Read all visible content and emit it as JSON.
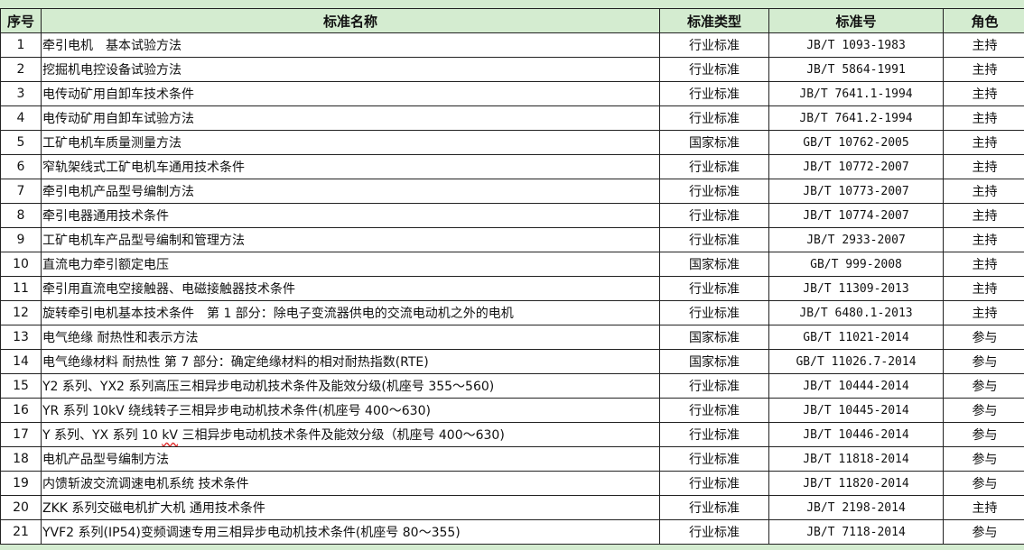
{
  "headers": {
    "seq": "序号",
    "name": "标准名称",
    "type": "标准类型",
    "number": "标准号",
    "role": "角色"
  },
  "colors": {
    "header_bg": "#d4ecd0",
    "border": "#222222",
    "spellcheck_underline": "#e03030"
  },
  "rows": [
    {
      "seq": "1",
      "name": "牵引电机　基本试验方法",
      "type": "行业标准",
      "number": "JB/T 1093-1983",
      "role": "主持"
    },
    {
      "seq": "2",
      "name": "挖掘机电控设备试验方法",
      "type": "行业标准",
      "number": "JB/T 5864-1991",
      "role": "主持"
    },
    {
      "seq": "3",
      "name": "电传动矿用自卸车技术条件",
      "type": "行业标准",
      "number": "JB/T 7641.1-1994",
      "role": "主持"
    },
    {
      "seq": "4",
      "name": "电传动矿用自卸车试验方法",
      "type": "行业标准",
      "number": "JB/T 7641.2-1994",
      "role": "主持"
    },
    {
      "seq": "5",
      "name": "工矿电机车质量测量方法",
      "type": "国家标准",
      "number": "GB/T 10762-2005",
      "role": "主持"
    },
    {
      "seq": "6",
      "name": "窄轨架线式工矿电机车通用技术条件",
      "type": "行业标准",
      "number": "JB/T 10772-2007",
      "role": "主持"
    },
    {
      "seq": "7",
      "name": "牵引电机产品型号编制方法",
      "type": "行业标准",
      "number": "JB/T 10773-2007",
      "role": "主持"
    },
    {
      "seq": "8",
      "name": "牵引电器通用技术条件",
      "type": "行业标准",
      "number": "JB/T 10774-2007",
      "role": "主持"
    },
    {
      "seq": "9",
      "name": "工矿电机车产品型号编制和管理方法",
      "type": "行业标准",
      "number": "JB/T 2933-2007",
      "role": "主持"
    },
    {
      "seq": "10",
      "name": "直流电力牵引额定电压",
      "type": "国家标准",
      "number": "GB/T 999-2008",
      "role": "主持"
    },
    {
      "seq": "11",
      "name": "牵引用直流电空接触器、电磁接触器技术条件",
      "type": "行业标准",
      "number": "JB/T 11309-2013",
      "role": "主持"
    },
    {
      "seq": "12",
      "name": "旋转牵引电机基本技术条件　第 1 部分：除电子变流器供电的交流电动机之外的电机",
      "type": "行业标准",
      "number": "JB/T 6480.1-2013",
      "role": "主持"
    },
    {
      "seq": "13",
      "name": "电气绝缘 耐热性和表示方法",
      "type": "国家标准",
      "number": "GB/T 11021-2014",
      "role": "参与"
    },
    {
      "seq": "14",
      "name": "电气绝缘材料 耐热性 第 7 部分：确定绝缘材料的相对耐热指数(RTE)",
      "type": "国家标准",
      "number": "GB/T 11026.7-2014",
      "role": "参与"
    },
    {
      "seq": "15",
      "name": "Y2 系列、YX2 系列高压三相异步电动机技术条件及能效分级(机座号 355～560)",
      "type": "行业标准",
      "number": "JB/T 10444-2014",
      "role": "参与"
    },
    {
      "seq": "16",
      "name": "YR 系列 10kV 绕线转子三相异步电动机技术条件(机座号 400～630)",
      "type": "行业标准",
      "number": "JB/T 10445-2014",
      "role": "参与"
    },
    {
      "seq": "17",
      "name": "Y 系列、YX 系列 10 kV 三相异步电动机技术条件及能效分级（机座号 400～630)",
      "type": "行业标准",
      "number": "JB/T 10446-2014",
      "role": "参与"
    },
    {
      "seq": "18",
      "name": "电机产品型号编制方法",
      "type": "行业标准",
      "number": "JB/T 11818-2014",
      "role": "参与"
    },
    {
      "seq": "19",
      "name": "内馈斩波交流调速电机系统 技术条件",
      "type": "行业标准",
      "number": "JB/T 11820-2014",
      "role": "参与"
    },
    {
      "seq": "20",
      "name": "ZKK 系列交磁电机扩大机 通用技术条件",
      "type": "行业标准",
      "number": "JB/T 2198-2014",
      "role": "主持"
    },
    {
      "seq": "21",
      "name": "YVF2 系列(IP54)变频调速专用三相异步电动机技术条件(机座号 80～355)",
      "type": "行业标准",
      "number": "JB/T 7118-2014",
      "role": "参与"
    }
  ]
}
